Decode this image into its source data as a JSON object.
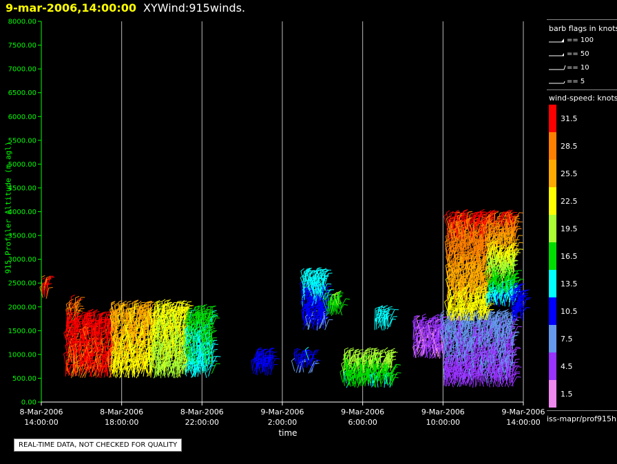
{
  "header": {
    "date_label": "9-mar-2006,14:00:00",
    "plot_name": "XYWind:915winds."
  },
  "legend": {
    "flags_title": "barb flags in knots",
    "flags": [
      {
        "label": "== 100"
      },
      {
        "label": "== 50"
      },
      {
        "label": "== 10"
      },
      {
        "label": "== 5"
      }
    ],
    "speed_title": "wind-speed: knots",
    "speed_bins": [
      {
        "value": "31.5",
        "color": "#ff0000"
      },
      {
        "value": "28.5",
        "color": "#ff8000"
      },
      {
        "value": "25.5",
        "color": "#ffaa00"
      },
      {
        "value": "22.5",
        "color": "#ffff00"
      },
      {
        "value": "19.5",
        "color": "#aaff33"
      },
      {
        "value": "16.5",
        "color": "#00dd00"
      },
      {
        "value": "13.5",
        "color": "#00ffff"
      },
      {
        "value": "10.5",
        "color": "#0000ff"
      },
      {
        "value": "7.5",
        "color": "#6699ee"
      },
      {
        "value": "4.5",
        "color": "#9933ff"
      },
      {
        "value": "1.5",
        "color": "#ee88ee"
      }
    ]
  },
  "source_label": "iss-mapr/prof915h",
  "notice": "REAL-TIME DATA, NOT CHECKED FOR QUALITY",
  "chart_data": {
    "type": "scatter",
    "title": "XYWind:915winds.",
    "xlabel": "time",
    "ylabel": "915 Profiler Altitude (m agl)",
    "x_ticks": [
      {
        "l1": "8-Mar-2006",
        "l2": "14:00:00"
      },
      {
        "l1": "8-Mar-2006",
        "l2": "18:00:00"
      },
      {
        "l1": "8-Mar-2006",
        "l2": "22:00:00"
      },
      {
        "l1": "9-Mar-2006",
        "l2": "2:00:00"
      },
      {
        "l1": "9-Mar-2006",
        "l2": "6:00:00"
      },
      {
        "l1": "9-Mar-2006",
        "l2": "10:00:00"
      },
      {
        "l1": "9-Mar-2006",
        "l2": "14:00:00"
      }
    ],
    "x_range_hours": [
      0,
      24
    ],
    "y_ticks": [
      "0.00",
      "500.00",
      "1000.00",
      "1500.00",
      "2000.00",
      "2500.00",
      "3000.00",
      "3500.00",
      "4000.00",
      "4500.00",
      "5000.00",
      "5500.00",
      "6000.00",
      "6500.00",
      "7000.00",
      "7500.00",
      "8000.00"
    ],
    "ylim": [
      0,
      8000
    ],
    "vertical_gridlines": true,
    "barb_clusters": [
      {
        "t0": 0.0,
        "t1": 0.3,
        "z0": 2150,
        "z1": 2450,
        "speed_top": 30,
        "speed_bot": 30
      },
      {
        "t0": 1.3,
        "t1": 1.8,
        "z0": 1700,
        "z1": 2000,
        "speed_top": 30,
        "speed_bot": 28
      },
      {
        "t0": 1.2,
        "t1": 3.5,
        "z0": 500,
        "z1": 1700,
        "speed_top": 31,
        "speed_bot": 30
      },
      {
        "t0": 3.5,
        "t1": 5.5,
        "z0": 500,
        "z1": 1900,
        "speed_top": 25,
        "speed_bot": 23
      },
      {
        "t0": 5.5,
        "t1": 7.2,
        "z0": 500,
        "z1": 1900,
        "speed_top": 22,
        "speed_bot": 20
      },
      {
        "t0": 7.2,
        "t1": 8.5,
        "z0": 500,
        "z1": 1800,
        "speed_top": 16,
        "speed_bot": 14
      },
      {
        "t0": 10.5,
        "t1": 11.5,
        "z0": 550,
        "z1": 900,
        "speed_top": 11,
        "speed_bot": 10
      },
      {
        "t0": 12.6,
        "t1": 13.5,
        "z0": 600,
        "z1": 900,
        "speed_top": 12,
        "speed_bot": 8
      },
      {
        "t0": 13.0,
        "t1": 14.2,
        "z0": 1500,
        "z1": 2600,
        "speed_top": 14,
        "speed_bot": 9
      },
      {
        "t0": 14.2,
        "t1": 15.0,
        "z0": 1800,
        "z1": 2100,
        "speed_top": 18,
        "speed_bot": 16
      },
      {
        "t0": 15.0,
        "t1": 17.5,
        "z0": 300,
        "z1": 900,
        "speed_top": 20,
        "speed_bot": 15
      },
      {
        "t0": 16.6,
        "t1": 17.4,
        "z0": 1500,
        "z1": 1800,
        "speed_top": 14,
        "speed_bot": 13
      },
      {
        "t0": 18.5,
        "t1": 20.0,
        "z0": 900,
        "z1": 1600,
        "speed_top": 4,
        "speed_bot": 3
      },
      {
        "t0": 20.0,
        "t1": 23.5,
        "z0": 300,
        "z1": 1700,
        "speed_top": 7,
        "speed_bot": 5
      },
      {
        "t0": 20.2,
        "t1": 22.2,
        "z0": 1700,
        "z1": 3800,
        "speed_top": 31,
        "speed_bot": 22
      },
      {
        "t0": 22.2,
        "t1": 23.6,
        "z0": 2000,
        "z1": 3800,
        "speed_top": 31,
        "speed_bot": 12
      },
      {
        "t0": 23.4,
        "t1": 24.0,
        "z0": 1700,
        "z1": 2300,
        "speed_top": 11,
        "speed_bot": 10
      }
    ]
  }
}
